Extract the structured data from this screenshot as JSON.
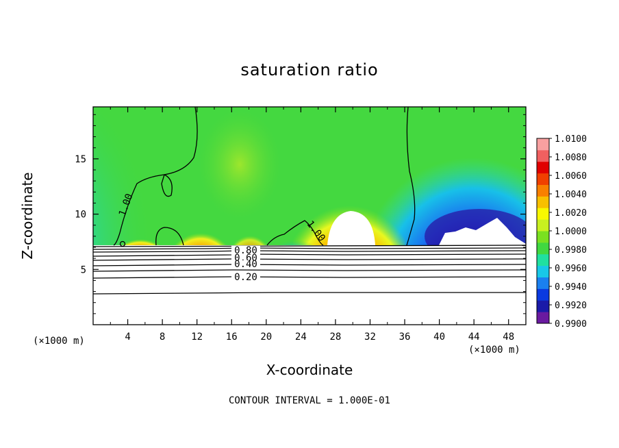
{
  "chart_data": {
    "type": "heatmap",
    "title": "saturation ratio",
    "xlabel": "X-coordinate",
    "ylabel": "Z-coordinate",
    "x_unit_left": "(×1000 m)",
    "x_unit_right": "(×1000 m)",
    "footer": "CONTOUR INTERVAL = 1.000E-01",
    "xlim": [
      0,
      50
    ],
    "ylim": [
      0,
      19.7
    ],
    "x_ticks": [
      4,
      8,
      12,
      16,
      20,
      24,
      28,
      32,
      36,
      40,
      44,
      48
    ],
    "x_tick_labels": [
      "4",
      "8",
      "12",
      "16",
      "20",
      "24",
      "28",
      "32",
      "36",
      "40",
      "44",
      "48"
    ],
    "y_ticks": [
      5,
      10,
      15
    ],
    "y_tick_labels": [
      "5",
      "10",
      "15"
    ],
    "colorbar": {
      "min": 0.99,
      "max": 1.01,
      "labels": [
        "1.0100",
        "1.0080",
        "1.0060",
        "1.0040",
        "1.0020",
        "1.0000",
        "0.9980",
        "0.9960",
        "0.9940",
        "0.9920",
        "0.9900"
      ],
      "colors": [
        "#6a1aa0",
        "#1a1aa8",
        "#0a3ae0",
        "#1a80f0",
        "#18c8e8",
        "#20e0a0",
        "#40d840",
        "#7ae020",
        "#c8f020",
        "#f8f800",
        "#f8c000",
        "#f88000",
        "#f04000",
        "#e00000",
        "#f06060",
        "#f8a0a0"
      ]
    },
    "contour_labels": [
      "1.00",
      "1.00",
      "0.80",
      "0.60",
      "0.40",
      "0.20"
    ],
    "colors": {
      "background_field": "#44d840",
      "low_region": "#1a2ae0",
      "high_region": "#e82020",
      "blank_region": "#ffffff"
    }
  }
}
